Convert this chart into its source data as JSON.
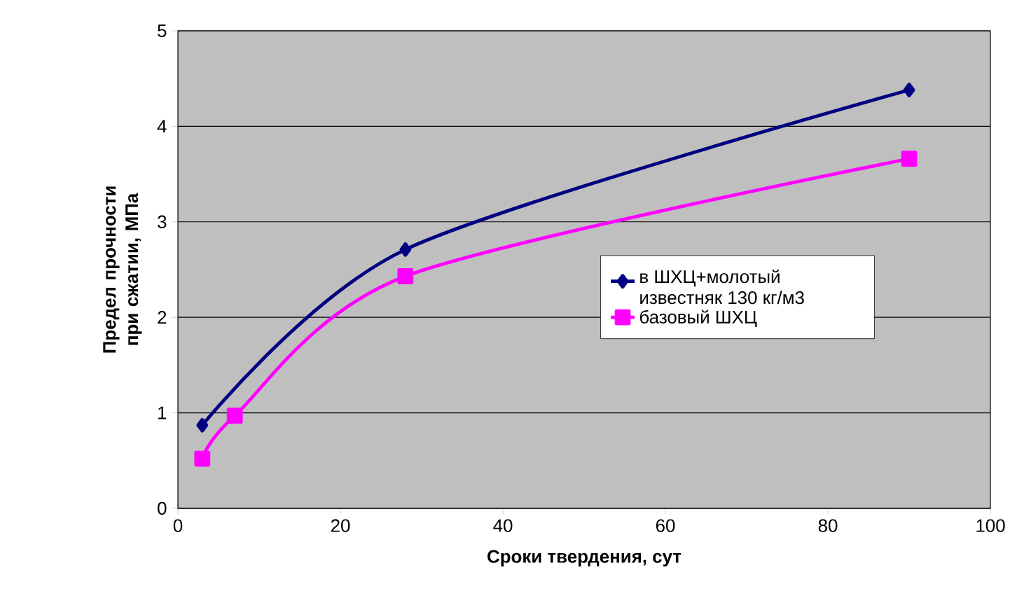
{
  "chart_data": {
    "type": "line",
    "xlabel": "Сроки твердения, сут",
    "ylabel": "Предел прочности при сжатии, МПа",
    "xlim": [
      0,
      100
    ],
    "xticks": [
      0,
      20,
      40,
      60,
      80,
      100
    ],
    "ylim": [
      0,
      5
    ],
    "yticks": [
      0,
      1,
      2,
      3,
      4,
      5
    ],
    "grid": "y",
    "legend": "right",
    "series": [
      {
        "name": "в ШХЦ+молотый известняк 130 кг/м3",
        "color": "#000080",
        "marker": "diamond",
        "x": [
          3,
          7,
          28,
          90
        ],
        "values": [
          0.87,
          null,
          2.71,
          4.38
        ]
      },
      {
        "name": "базовый ШХЦ",
        "color": "#ff00ff",
        "marker": "square",
        "x": [
          3,
          7,
          28,
          90
        ],
        "values": [
          0.52,
          0.97,
          2.43,
          3.66
        ]
      }
    ]
  }
}
